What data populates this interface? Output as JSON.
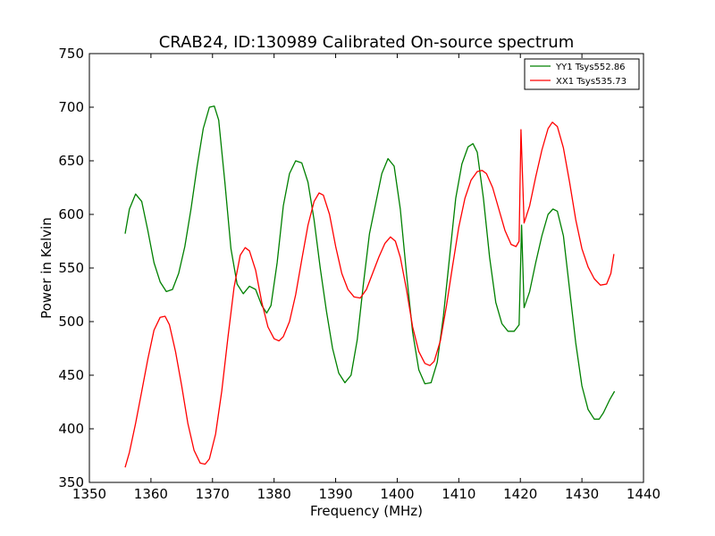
{
  "chart_data": {
    "type": "line",
    "title": "CRAB24, ID:130989 Calibrated On-source spectrum",
    "xlabel": "Frequency (MHz)",
    "ylabel": "Power in Kelvin",
    "xlim": [
      1350,
      1440
    ],
    "ylim": [
      350,
      750
    ],
    "xticks": [
      1350,
      1360,
      1370,
      1380,
      1390,
      1400,
      1410,
      1420,
      1430,
      1440
    ],
    "yticks": [
      350,
      400,
      450,
      500,
      550,
      600,
      650,
      700,
      750
    ],
    "grid": false,
    "legend_position": "top-right",
    "series": [
      {
        "name": "YY1 Tsys552.86",
        "color": "#008000",
        "points": [
          [
            1355.8,
            582
          ],
          [
            1356.5,
            605
          ],
          [
            1357.5,
            619
          ],
          [
            1358.5,
            612
          ],
          [
            1359.5,
            585
          ],
          [
            1360.5,
            555
          ],
          [
            1361.5,
            537
          ],
          [
            1362.5,
            528
          ],
          [
            1363.5,
            530
          ],
          [
            1364.5,
            545
          ],
          [
            1365.5,
            570
          ],
          [
            1366.5,
            605
          ],
          [
            1367.5,
            645
          ],
          [
            1368.5,
            680
          ],
          [
            1369.5,
            700
          ],
          [
            1370.3,
            701
          ],
          [
            1371.0,
            688
          ],
          [
            1372.0,
            630
          ],
          [
            1373.0,
            568
          ],
          [
            1374.0,
            535
          ],
          [
            1375.0,
            526
          ],
          [
            1376.0,
            533
          ],
          [
            1377.0,
            530
          ],
          [
            1378.0,
            515
          ],
          [
            1378.8,
            508
          ],
          [
            1379.5,
            515
          ],
          [
            1380.5,
            555
          ],
          [
            1381.5,
            608
          ],
          [
            1382.5,
            638
          ],
          [
            1383.5,
            650
          ],
          [
            1384.5,
            648
          ],
          [
            1385.5,
            630
          ],
          [
            1386.5,
            595
          ],
          [
            1387.5,
            550
          ],
          [
            1388.5,
            510
          ],
          [
            1389.5,
            475
          ],
          [
            1390.5,
            452
          ],
          [
            1391.5,
            443
          ],
          [
            1392.5,
            450
          ],
          [
            1393.5,
            483
          ],
          [
            1394.5,
            535
          ],
          [
            1395.5,
            582
          ],
          [
            1396.5,
            610
          ],
          [
            1397.5,
            638
          ],
          [
            1398.5,
            652
          ],
          [
            1399.5,
            645
          ],
          [
            1400.5,
            605
          ],
          [
            1401.5,
            545
          ],
          [
            1402.5,
            490
          ],
          [
            1403.5,
            455
          ],
          [
            1404.5,
            442
          ],
          [
            1405.5,
            443
          ],
          [
            1406.5,
            462
          ],
          [
            1407.5,
            505
          ],
          [
            1408.5,
            560
          ],
          [
            1409.5,
            615
          ],
          [
            1410.5,
            647
          ],
          [
            1411.5,
            663
          ],
          [
            1412.3,
            666
          ],
          [
            1413.0,
            658
          ],
          [
            1414.0,
            615
          ],
          [
            1415.0,
            560
          ],
          [
            1416.0,
            518
          ],
          [
            1417.0,
            498
          ],
          [
            1418.0,
            491
          ],
          [
            1419.0,
            491
          ],
          [
            1419.8,
            497
          ],
          [
            1420.2,
            590
          ],
          [
            1420.6,
            513
          ],
          [
            1421.5,
            528
          ],
          [
            1422.5,
            555
          ],
          [
            1423.5,
            580
          ],
          [
            1424.5,
            600
          ],
          [
            1425.3,
            605
          ],
          [
            1426.0,
            603
          ],
          [
            1427.0,
            580
          ],
          [
            1428.0,
            530
          ],
          [
            1429.0,
            480
          ],
          [
            1430.0,
            440
          ],
          [
            1431.0,
            418
          ],
          [
            1432.0,
            409
          ],
          [
            1432.8,
            409
          ],
          [
            1433.5,
            415
          ],
          [
            1434.5,
            427
          ],
          [
            1435.3,
            435
          ]
        ]
      },
      {
        "name": "XX1 Tsys535.73",
        "color": "#ff0000",
        "points": [
          [
            1355.8,
            364
          ],
          [
            1356.5,
            378
          ],
          [
            1357.5,
            405
          ],
          [
            1358.5,
            435
          ],
          [
            1359.5,
            465
          ],
          [
            1360.5,
            492
          ],
          [
            1361.5,
            504
          ],
          [
            1362.3,
            505
          ],
          [
            1363.0,
            497
          ],
          [
            1364.0,
            472
          ],
          [
            1365.0,
            440
          ],
          [
            1366.0,
            405
          ],
          [
            1367.0,
            380
          ],
          [
            1368.0,
            368
          ],
          [
            1368.8,
            367
          ],
          [
            1369.5,
            372
          ],
          [
            1370.5,
            395
          ],
          [
            1371.5,
            435
          ],
          [
            1372.5,
            485
          ],
          [
            1373.5,
            532
          ],
          [
            1374.5,
            562
          ],
          [
            1375.3,
            569
          ],
          [
            1376.0,
            566
          ],
          [
            1377.0,
            548
          ],
          [
            1378.0,
            518
          ],
          [
            1379.0,
            495
          ],
          [
            1380.0,
            484
          ],
          [
            1380.8,
            482
          ],
          [
            1381.5,
            486
          ],
          [
            1382.5,
            500
          ],
          [
            1383.5,
            525
          ],
          [
            1384.5,
            558
          ],
          [
            1385.5,
            590
          ],
          [
            1386.5,
            612
          ],
          [
            1387.3,
            620
          ],
          [
            1388.0,
            618
          ],
          [
            1389.0,
            600
          ],
          [
            1390.0,
            570
          ],
          [
            1391.0,
            545
          ],
          [
            1392.0,
            530
          ],
          [
            1393.0,
            523
          ],
          [
            1394.0,
            522
          ],
          [
            1395.0,
            530
          ],
          [
            1396.0,
            545
          ],
          [
            1397.0,
            560
          ],
          [
            1398.0,
            573
          ],
          [
            1398.9,
            579
          ],
          [
            1399.7,
            575
          ],
          [
            1400.5,
            560
          ],
          [
            1401.5,
            530
          ],
          [
            1402.5,
            495
          ],
          [
            1403.5,
            472
          ],
          [
            1404.5,
            461
          ],
          [
            1405.3,
            459
          ],
          [
            1406.0,
            463
          ],
          [
            1407.0,
            482
          ],
          [
            1408.0,
            515
          ],
          [
            1409.0,
            552
          ],
          [
            1410.0,
            588
          ],
          [
            1411.0,
            615
          ],
          [
            1412.0,
            632
          ],
          [
            1413.0,
            640
          ],
          [
            1413.8,
            641
          ],
          [
            1414.5,
            638
          ],
          [
            1415.5,
            625
          ],
          [
            1416.5,
            605
          ],
          [
            1417.5,
            585
          ],
          [
            1418.5,
            572
          ],
          [
            1419.3,
            570
          ],
          [
            1419.8,
            575
          ],
          [
            1420.1,
            679
          ],
          [
            1420.6,
            592
          ],
          [
            1421.5,
            608
          ],
          [
            1422.5,
            635
          ],
          [
            1423.5,
            660
          ],
          [
            1424.5,
            680
          ],
          [
            1425.2,
            686
          ],
          [
            1426.0,
            682
          ],
          [
            1427.0,
            662
          ],
          [
            1428.0,
            630
          ],
          [
            1429.0,
            595
          ],
          [
            1430.0,
            568
          ],
          [
            1431.0,
            551
          ],
          [
            1432.0,
            540
          ],
          [
            1433.0,
            534
          ],
          [
            1434.0,
            535
          ],
          [
            1434.7,
            545
          ],
          [
            1435.2,
            563
          ]
        ]
      }
    ]
  }
}
